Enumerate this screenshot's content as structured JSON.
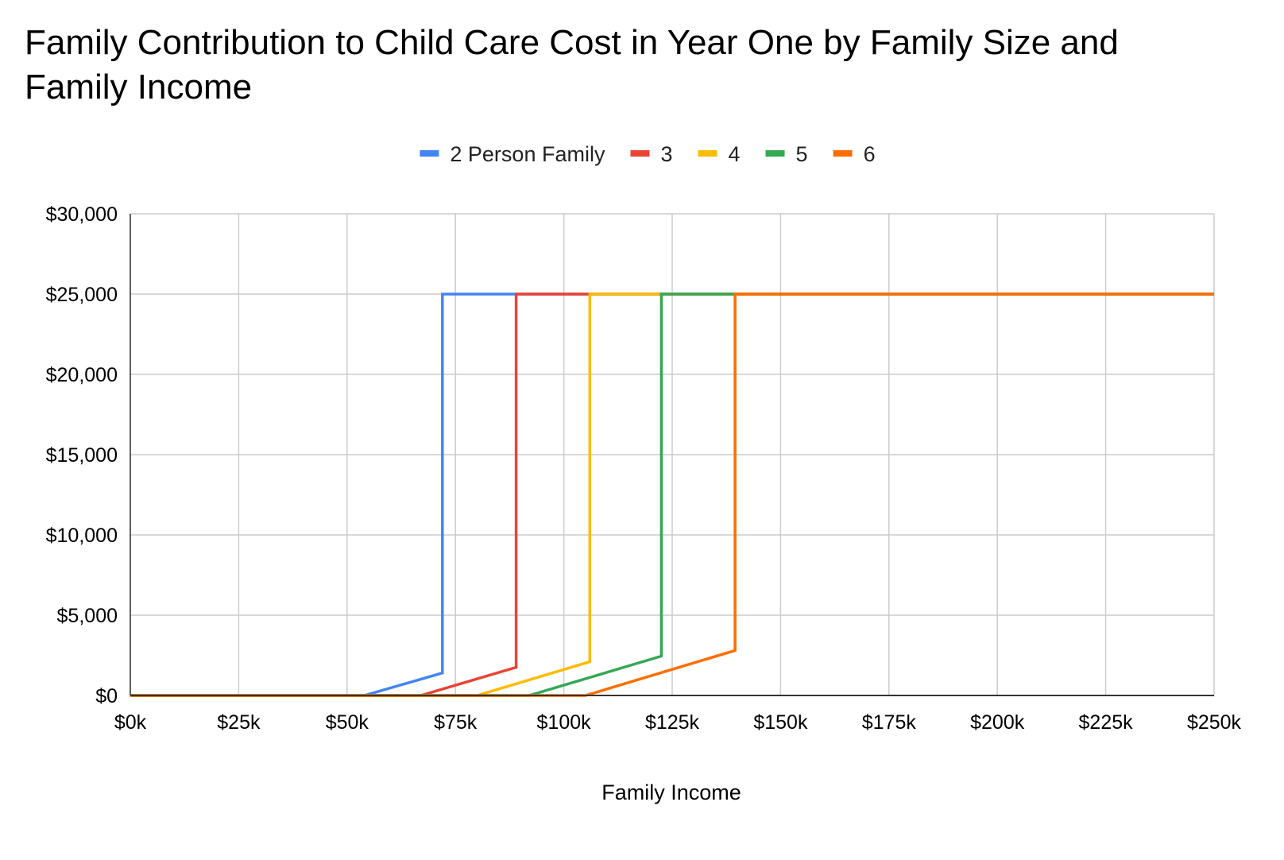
{
  "chart_data": {
    "type": "line",
    "title": "Family Contribution to Child Care Cost in Year One by Family Size and Family Income",
    "xlabel": "Family Income",
    "ylabel": "",
    "xlim": [
      0,
      250000
    ],
    "ylim": [
      0,
      30000
    ],
    "x_ticks": [
      0,
      25000,
      50000,
      75000,
      100000,
      125000,
      150000,
      175000,
      200000,
      225000,
      250000
    ],
    "x_tick_labels": [
      "$0k",
      "$25k",
      "$50k",
      "$75k",
      "$100k",
      "$125k",
      "$150k",
      "$175k",
      "$200k",
      "$225k",
      "$250k"
    ],
    "y_ticks": [
      0,
      5000,
      10000,
      15000,
      20000,
      25000,
      30000
    ],
    "y_tick_labels": [
      "$0",
      "$5,000",
      "$10,000",
      "$15,000",
      "$20,000",
      "$25,000",
      "$30,000"
    ],
    "grid": true,
    "legend_position": "top",
    "series": [
      {
        "name": "2 Person Family",
        "color": "#4285f4",
        "points": [
          [
            0,
            0
          ],
          [
            54000,
            0
          ],
          [
            72000,
            1400
          ],
          [
            72000,
            25000
          ],
          [
            250000,
            25000
          ]
        ]
      },
      {
        "name": "3",
        "color": "#ea4335",
        "points": [
          [
            0,
            0
          ],
          [
            67000,
            0
          ],
          [
            89000,
            1750
          ],
          [
            89000,
            25000
          ],
          [
            250000,
            25000
          ]
        ]
      },
      {
        "name": "4",
        "color": "#fbbc04",
        "points": [
          [
            0,
            0
          ],
          [
            80000,
            0
          ],
          [
            106000,
            2100
          ],
          [
            106000,
            25000
          ],
          [
            250000,
            25000
          ]
        ]
      },
      {
        "name": "5",
        "color": "#34a853",
        "points": [
          [
            0,
            0
          ],
          [
            92000,
            0
          ],
          [
            122500,
            2450
          ],
          [
            122500,
            25000
          ],
          [
            250000,
            25000
          ]
        ]
      },
      {
        "name": "6",
        "color": "#ff6d01",
        "points": [
          [
            0,
            0
          ],
          [
            105000,
            0
          ],
          [
            139500,
            2800
          ],
          [
            139500,
            25000
          ],
          [
            250000,
            25000
          ]
        ]
      }
    ]
  }
}
